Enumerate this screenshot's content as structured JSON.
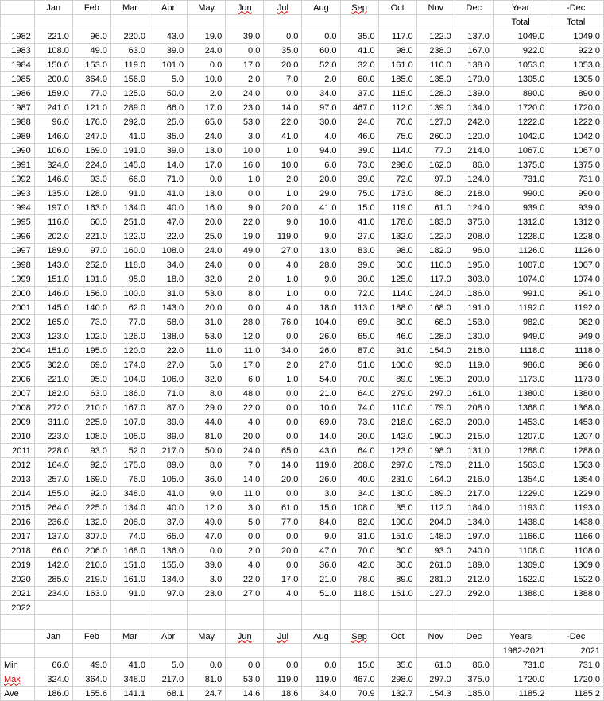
{
  "headers": {
    "months": [
      "Jan",
      "Feb",
      "Mar",
      "Apr",
      "May",
      "Jun",
      "Jul",
      "Aug",
      "Sep",
      "Oct",
      "Nov",
      "Dec"
    ],
    "year": "Year",
    "dec": "-Dec",
    "total": "Total"
  },
  "wavy_headers": [
    "Jun",
    "Jul",
    "Sep"
  ],
  "rows": [
    {
      "year": "1982",
      "vals": [
        "221.0",
        "96.0",
        "220.0",
        "43.0",
        "19.0",
        "39.0",
        "0.0",
        "0.0",
        "35.0",
        "117.0",
        "122.0",
        "137.0"
      ],
      "total": "1049.0",
      "dec": "1049.0"
    },
    {
      "year": "1983",
      "vals": [
        "108.0",
        "49.0",
        "63.0",
        "39.0",
        "24.0",
        "0.0",
        "35.0",
        "60.0",
        "41.0",
        "98.0",
        "238.0",
        "167.0"
      ],
      "total": "922.0",
      "dec": "922.0"
    },
    {
      "year": "1984",
      "vals": [
        "150.0",
        "153.0",
        "119.0",
        "101.0",
        "0.0",
        "17.0",
        "20.0",
        "52.0",
        "32.0",
        "161.0",
        "110.0",
        "138.0"
      ],
      "total": "1053.0",
      "dec": "1053.0"
    },
    {
      "year": "1985",
      "vals": [
        "200.0",
        "364.0",
        "156.0",
        "5.0",
        "10.0",
        "2.0",
        "7.0",
        "2.0",
        "60.0",
        "185.0",
        "135.0",
        "179.0"
      ],
      "total": "1305.0",
      "dec": "1305.0"
    },
    {
      "year": "1986",
      "vals": [
        "159.0",
        "77.0",
        "125.0",
        "50.0",
        "2.0",
        "24.0",
        "0.0",
        "34.0",
        "37.0",
        "115.0",
        "128.0",
        "139.0"
      ],
      "total": "890.0",
      "dec": "890.0"
    },
    {
      "year": "1987",
      "vals": [
        "241.0",
        "121.0",
        "289.0",
        "66.0",
        "17.0",
        "23.0",
        "14.0",
        "97.0",
        "467.0",
        "112.0",
        "139.0",
        "134.0"
      ],
      "total": "1720.0",
      "dec": "1720.0"
    },
    {
      "year": "1988",
      "vals": [
        "96.0",
        "176.0",
        "292.0",
        "25.0",
        "65.0",
        "53.0",
        "22.0",
        "30.0",
        "24.0",
        "70.0",
        "127.0",
        "242.0"
      ],
      "total": "1222.0",
      "dec": "1222.0"
    },
    {
      "year": "1989",
      "vals": [
        "146.0",
        "247.0",
        "41.0",
        "35.0",
        "24.0",
        "3.0",
        "41.0",
        "4.0",
        "46.0",
        "75.0",
        "260.0",
        "120.0"
      ],
      "total": "1042.0",
      "dec": "1042.0"
    },
    {
      "year": "1990",
      "vals": [
        "106.0",
        "169.0",
        "191.0",
        "39.0",
        "13.0",
        "10.0",
        "1.0",
        "94.0",
        "39.0",
        "114.0",
        "77.0",
        "214.0"
      ],
      "total": "1067.0",
      "dec": "1067.0"
    },
    {
      "year": "1991",
      "vals": [
        "324.0",
        "224.0",
        "145.0",
        "14.0",
        "17.0",
        "16.0",
        "10.0",
        "6.0",
        "73.0",
        "298.0",
        "162.0",
        "86.0"
      ],
      "total": "1375.0",
      "dec": "1375.0"
    },
    {
      "year": "1992",
      "vals": [
        "146.0",
        "93.0",
        "66.0",
        "71.0",
        "0.0",
        "1.0",
        "2.0",
        "20.0",
        "39.0",
        "72.0",
        "97.0",
        "124.0"
      ],
      "total": "731.0",
      "dec": "731.0"
    },
    {
      "year": "1993",
      "vals": [
        "135.0",
        "128.0",
        "91.0",
        "41.0",
        "13.0",
        "0.0",
        "1.0",
        "29.0",
        "75.0",
        "173.0",
        "86.0",
        "218.0"
      ],
      "total": "990.0",
      "dec": "990.0"
    },
    {
      "year": "1994",
      "vals": [
        "197.0",
        "163.0",
        "134.0",
        "40.0",
        "16.0",
        "9.0",
        "20.0",
        "41.0",
        "15.0",
        "119.0",
        "61.0",
        "124.0"
      ],
      "total": "939.0",
      "dec": "939.0"
    },
    {
      "year": "1995",
      "vals": [
        "116.0",
        "60.0",
        "251.0",
        "47.0",
        "20.0",
        "22.0",
        "9.0",
        "10.0",
        "41.0",
        "178.0",
        "183.0",
        "375.0"
      ],
      "total": "1312.0",
      "dec": "1312.0"
    },
    {
      "year": "1996",
      "vals": [
        "202.0",
        "221.0",
        "122.0",
        "22.0",
        "25.0",
        "19.0",
        "119.0",
        "9.0",
        "27.0",
        "132.0",
        "122.0",
        "208.0"
      ],
      "total": "1228.0",
      "dec": "1228.0"
    },
    {
      "year": "1997",
      "vals": [
        "189.0",
        "97.0",
        "160.0",
        "108.0",
        "24.0",
        "49.0",
        "27.0",
        "13.0",
        "83.0",
        "98.0",
        "182.0",
        "96.0"
      ],
      "total": "1126.0",
      "dec": "1126.0"
    },
    {
      "year": "1998",
      "vals": [
        "143.0",
        "252.0",
        "118.0",
        "34.0",
        "24.0",
        "0.0",
        "4.0",
        "28.0",
        "39.0",
        "60.0",
        "110.0",
        "195.0"
      ],
      "total": "1007.0",
      "dec": "1007.0"
    },
    {
      "year": "1999",
      "vals": [
        "151.0",
        "191.0",
        "95.0",
        "18.0",
        "32.0",
        "2.0",
        "1.0",
        "9.0",
        "30.0",
        "125.0",
        "117.0",
        "303.0"
      ],
      "total": "1074.0",
      "dec": "1074.0"
    },
    {
      "year": "2000",
      "vals": [
        "146.0",
        "156.0",
        "100.0",
        "31.0",
        "53.0",
        "8.0",
        "1.0",
        "0.0",
        "72.0",
        "114.0",
        "124.0",
        "186.0"
      ],
      "total": "991.0",
      "dec": "991.0"
    },
    {
      "year": "2001",
      "vals": [
        "145.0",
        "140.0",
        "62.0",
        "143.0",
        "20.0",
        "0.0",
        "4.0",
        "18.0",
        "113.0",
        "188.0",
        "168.0",
        "191.0"
      ],
      "total": "1192.0",
      "dec": "1192.0"
    },
    {
      "year": "2002",
      "vals": [
        "165.0",
        "73.0",
        "77.0",
        "58.0",
        "31.0",
        "28.0",
        "76.0",
        "104.0",
        "69.0",
        "80.0",
        "68.0",
        "153.0"
      ],
      "total": "982.0",
      "dec": "982.0"
    },
    {
      "year": "2003",
      "vals": [
        "123.0",
        "102.0",
        "126.0",
        "138.0",
        "53.0",
        "12.0",
        "0.0",
        "26.0",
        "65.0",
        "46.0",
        "128.0",
        "130.0"
      ],
      "total": "949.0",
      "dec": "949.0"
    },
    {
      "year": "2004",
      "vals": [
        "151.0",
        "195.0",
        "120.0",
        "22.0",
        "11.0",
        "11.0",
        "34.0",
        "26.0",
        "87.0",
        "91.0",
        "154.0",
        "216.0"
      ],
      "total": "1118.0",
      "dec": "1118.0"
    },
    {
      "year": "2005",
      "vals": [
        "302.0",
        "69.0",
        "174.0",
        "27.0",
        "5.0",
        "17.0",
        "2.0",
        "27.0",
        "51.0",
        "100.0",
        "93.0",
        "119.0"
      ],
      "total": "986.0",
      "dec": "986.0"
    },
    {
      "year": "2006",
      "vals": [
        "221.0",
        "95.0",
        "104.0",
        "106.0",
        "32.0",
        "6.0",
        "1.0",
        "54.0",
        "70.0",
        "89.0",
        "195.0",
        "200.0"
      ],
      "total": "1173.0",
      "dec": "1173.0"
    },
    {
      "year": "2007",
      "vals": [
        "182.0",
        "63.0",
        "186.0",
        "71.0",
        "8.0",
        "48.0",
        "0.0",
        "21.0",
        "64.0",
        "279.0",
        "297.0",
        "161.0"
      ],
      "total": "1380.0",
      "dec": "1380.0"
    },
    {
      "year": "2008",
      "vals": [
        "272.0",
        "210.0",
        "167.0",
        "87.0",
        "29.0",
        "22.0",
        "0.0",
        "10.0",
        "74.0",
        "110.0",
        "179.0",
        "208.0"
      ],
      "total": "1368.0",
      "dec": "1368.0"
    },
    {
      "year": "2009",
      "vals": [
        "311.0",
        "225.0",
        "107.0",
        "39.0",
        "44.0",
        "4.0",
        "0.0",
        "69.0",
        "73.0",
        "218.0",
        "163.0",
        "200.0"
      ],
      "total": "1453.0",
      "dec": "1453.0"
    },
    {
      "year": "2010",
      "vals": [
        "223.0",
        "108.0",
        "105.0",
        "89.0",
        "81.0",
        "20.0",
        "0.0",
        "14.0",
        "20.0",
        "142.0",
        "190.0",
        "215.0"
      ],
      "total": "1207.0",
      "dec": "1207.0"
    },
    {
      "year": "2011",
      "vals": [
        "228.0",
        "93.0",
        "52.0",
        "217.0",
        "50.0",
        "24.0",
        "65.0",
        "43.0",
        "64.0",
        "123.0",
        "198.0",
        "131.0"
      ],
      "total": "1288.0",
      "dec": "1288.0"
    },
    {
      "year": "2012",
      "vals": [
        "164.0",
        "92.0",
        "175.0",
        "89.0",
        "8.0",
        "7.0",
        "14.0",
        "119.0",
        "208.0",
        "297.0",
        "179.0",
        "211.0"
      ],
      "total": "1563.0",
      "dec": "1563.0"
    },
    {
      "year": "2013",
      "vals": [
        "257.0",
        "169.0",
        "76.0",
        "105.0",
        "36.0",
        "14.0",
        "20.0",
        "26.0",
        "40.0",
        "231.0",
        "164.0",
        "216.0"
      ],
      "total": "1354.0",
      "dec": "1354.0"
    },
    {
      "year": "2014",
      "vals": [
        "155.0",
        "92.0",
        "348.0",
        "41.0",
        "9.0",
        "11.0",
        "0.0",
        "3.0",
        "34.0",
        "130.0",
        "189.0",
        "217.0"
      ],
      "total": "1229.0",
      "dec": "1229.0"
    },
    {
      "year": "2015",
      "vals": [
        "264.0",
        "225.0",
        "134.0",
        "40.0",
        "12.0",
        "3.0",
        "61.0",
        "15.0",
        "108.0",
        "35.0",
        "112.0",
        "184.0"
      ],
      "total": "1193.0",
      "dec": "1193.0"
    },
    {
      "year": "2016",
      "vals": [
        "236.0",
        "132.0",
        "208.0",
        "37.0",
        "49.0",
        "5.0",
        "77.0",
        "84.0",
        "82.0",
        "190.0",
        "204.0",
        "134.0"
      ],
      "total": "1438.0",
      "dec": "1438.0"
    },
    {
      "year": "2017",
      "vals": [
        "137.0",
        "307.0",
        "74.0",
        "65.0",
        "47.0",
        "0.0",
        "0.0",
        "9.0",
        "31.0",
        "151.0",
        "148.0",
        "197.0"
      ],
      "total": "1166.0",
      "dec": "1166.0"
    },
    {
      "year": "2018",
      "vals": [
        "66.0",
        "206.0",
        "168.0",
        "136.0",
        "0.0",
        "2.0",
        "20.0",
        "47.0",
        "70.0",
        "60.0",
        "93.0",
        "240.0"
      ],
      "total": "1108.0",
      "dec": "1108.0"
    },
    {
      "year": "2019",
      "vals": [
        "142.0",
        "210.0",
        "151.0",
        "155.0",
        "39.0",
        "4.0",
        "0.0",
        "36.0",
        "42.0",
        "80.0",
        "261.0",
        "189.0"
      ],
      "total": "1309.0",
      "dec": "1309.0"
    },
    {
      "year": "2020",
      "vals": [
        "285.0",
        "219.0",
        "161.0",
        "134.0",
        "3.0",
        "22.0",
        "17.0",
        "21.0",
        "78.0",
        "89.0",
        "281.0",
        "212.0"
      ],
      "total": "1522.0",
      "dec": "1522.0"
    },
    {
      "year": "2021",
      "vals": [
        "234.0",
        "163.0",
        "91.0",
        "97.0",
        "23.0",
        "27.0",
        "4.0",
        "51.0",
        "118.0",
        "161.0",
        "127.0",
        "292.0"
      ],
      "total": "1388.0",
      "dec": "1388.0"
    },
    {
      "year": "2022",
      "vals": [
        "",
        "",
        "",
        "",
        "",
        "",
        "",
        "",
        "",
        "",
        "",
        ""
      ],
      "total": "",
      "dec": ""
    }
  ],
  "summary": {
    "period_label": "Years",
    "period_val": "1982-2021",
    "dec_label": "-Dec",
    "dec_val": "2021",
    "min": {
      "label": "Min",
      "vals": [
        "66.0",
        "49.0",
        "41.0",
        "5.0",
        "0.0",
        "0.0",
        "0.0",
        "0.0",
        "15.0",
        "35.0",
        "61.0",
        "86.0"
      ],
      "total": "731.0",
      "dec": "731.0"
    },
    "max": {
      "label": "Max",
      "vals": [
        "324.0",
        "364.0",
        "348.0",
        "217.0",
        "81.0",
        "53.0",
        "119.0",
        "119.0",
        "467.0",
        "298.0",
        "297.0",
        "375.0"
      ],
      "total": "1720.0",
      "dec": "1720.0"
    },
    "ave": {
      "label": "Ave",
      "vals": [
        "186.0",
        "155.6",
        "141.1",
        "68.1",
        "24.7",
        "14.6",
        "18.6",
        "34.0",
        "70.9",
        "132.7",
        "154.3",
        "185.0"
      ],
      "total": "1185.2",
      "dec": "1185.2"
    }
  }
}
